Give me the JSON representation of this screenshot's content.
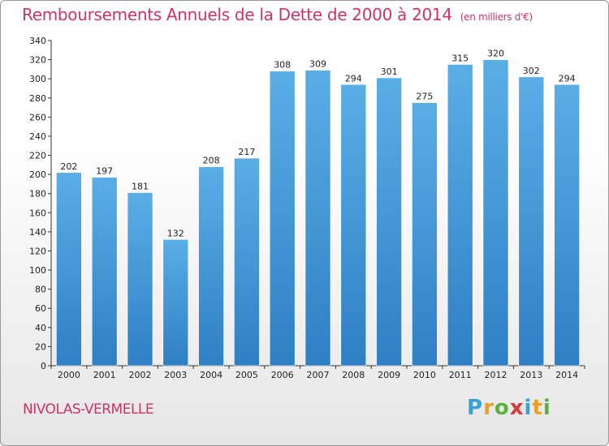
{
  "title": "Remboursements Annuels de la Dette de 2000 à 2014",
  "unit": "(en milliers d'€)",
  "commune": "NIVOLAS-VERMELLE",
  "logo": {
    "letters": [
      "P",
      "r",
      "o",
      "x",
      "i",
      "t",
      "i"
    ],
    "colors": [
      "#3aa0d8",
      "#e8a020",
      "#5cb040",
      "#d83a3a",
      "#3aa0d8",
      "#e8a020",
      "#5cb040"
    ]
  },
  "chart_data": {
    "type": "bar",
    "title": "Remboursements Annuels de la Dette de 2000 à 2014",
    "categories": [
      "2000",
      "2001",
      "2002",
      "2003",
      "2004",
      "2005",
      "2006",
      "2007",
      "2008",
      "2009",
      "2010",
      "2011",
      "2012",
      "2013",
      "2014"
    ],
    "values": [
      202,
      197,
      181,
      132,
      208,
      217,
      308,
      309,
      294,
      301,
      275,
      315,
      320,
      302,
      294
    ],
    "ylim": [
      0,
      340
    ],
    "yticks": [
      0,
      20,
      40,
      60,
      80,
      100,
      120,
      140,
      160,
      180,
      200,
      220,
      240,
      260,
      280,
      300,
      320,
      340
    ],
    "grid": false,
    "bar_color": "#2f7fc4",
    "bar_color_light": "#5aaee6"
  }
}
